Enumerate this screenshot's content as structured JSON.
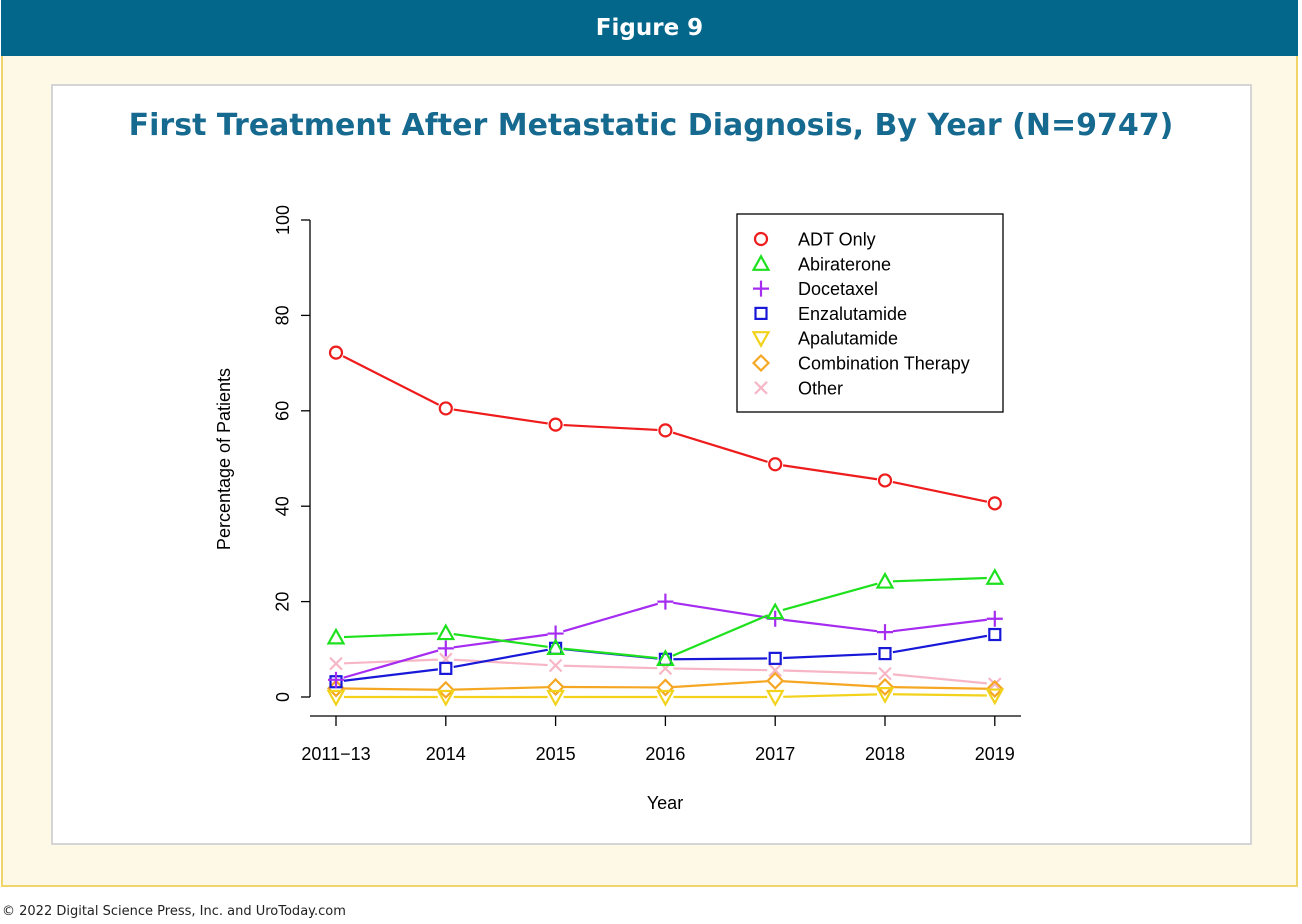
{
  "header": {
    "figure_label": "Figure 9"
  },
  "footer": {
    "copyright": "© 2022 Digital Science Press, Inc. and UroToday.com"
  },
  "colors": {
    "header_bg": "#03668b",
    "title": "#16698f",
    "frame_bg": "#fef8e6",
    "frame_border": "#f1d46a"
  },
  "chart_data": {
    "type": "line",
    "title": "First Treatment After Metastatic Diagnosis, By Year (N=9747)",
    "xlabel": "Year",
    "ylabel": "Percentage of Patients",
    "categories": [
      "2011−13",
      "2014",
      "2015",
      "2016",
      "2017",
      "2018",
      "2019"
    ],
    "yticks": [
      0,
      20,
      40,
      60,
      80,
      100
    ],
    "ylim": [
      0,
      100
    ],
    "grid": false,
    "legend_position": "top-right",
    "series": [
      {
        "name": "ADT Only",
        "color": "#ee1c1c",
        "marker": "circle",
        "values": [
          72.2,
          60.5,
          57.1,
          55.9,
          48.8,
          45.4,
          40.6
        ]
      },
      {
        "name": "Abiraterone",
        "color": "#1ee11e",
        "marker": "triangle-up",
        "values": [
          12.5,
          13.4,
          10.3,
          8.0,
          17.8,
          24.2,
          25.0
        ]
      },
      {
        "name": "Docetaxel",
        "color": "#a52cf0",
        "marker": "plus",
        "values": [
          3.6,
          10.2,
          13.3,
          20.0,
          16.4,
          13.6,
          16.4
        ]
      },
      {
        "name": "Enzalutamide",
        "color": "#1818d9",
        "marker": "square",
        "values": [
          3.2,
          6.0,
          10.2,
          7.9,
          8.1,
          9.1,
          13.1
        ]
      },
      {
        "name": "Apalutamide",
        "color": "#f2d21a",
        "marker": "triangle-down",
        "values": [
          0.0,
          0.0,
          0.0,
          0.0,
          0.0,
          0.6,
          0.3
        ]
      },
      {
        "name": "Combination Therapy",
        "color": "#f5a623",
        "marker": "diamond",
        "values": [
          1.8,
          1.5,
          2.1,
          2.0,
          3.4,
          2.1,
          1.7
        ]
      },
      {
        "name": "Other",
        "color": "#f7b6c6",
        "marker": "x",
        "values": [
          7.0,
          7.9,
          6.6,
          6.0,
          5.6,
          4.9,
          2.7
        ]
      }
    ]
  }
}
